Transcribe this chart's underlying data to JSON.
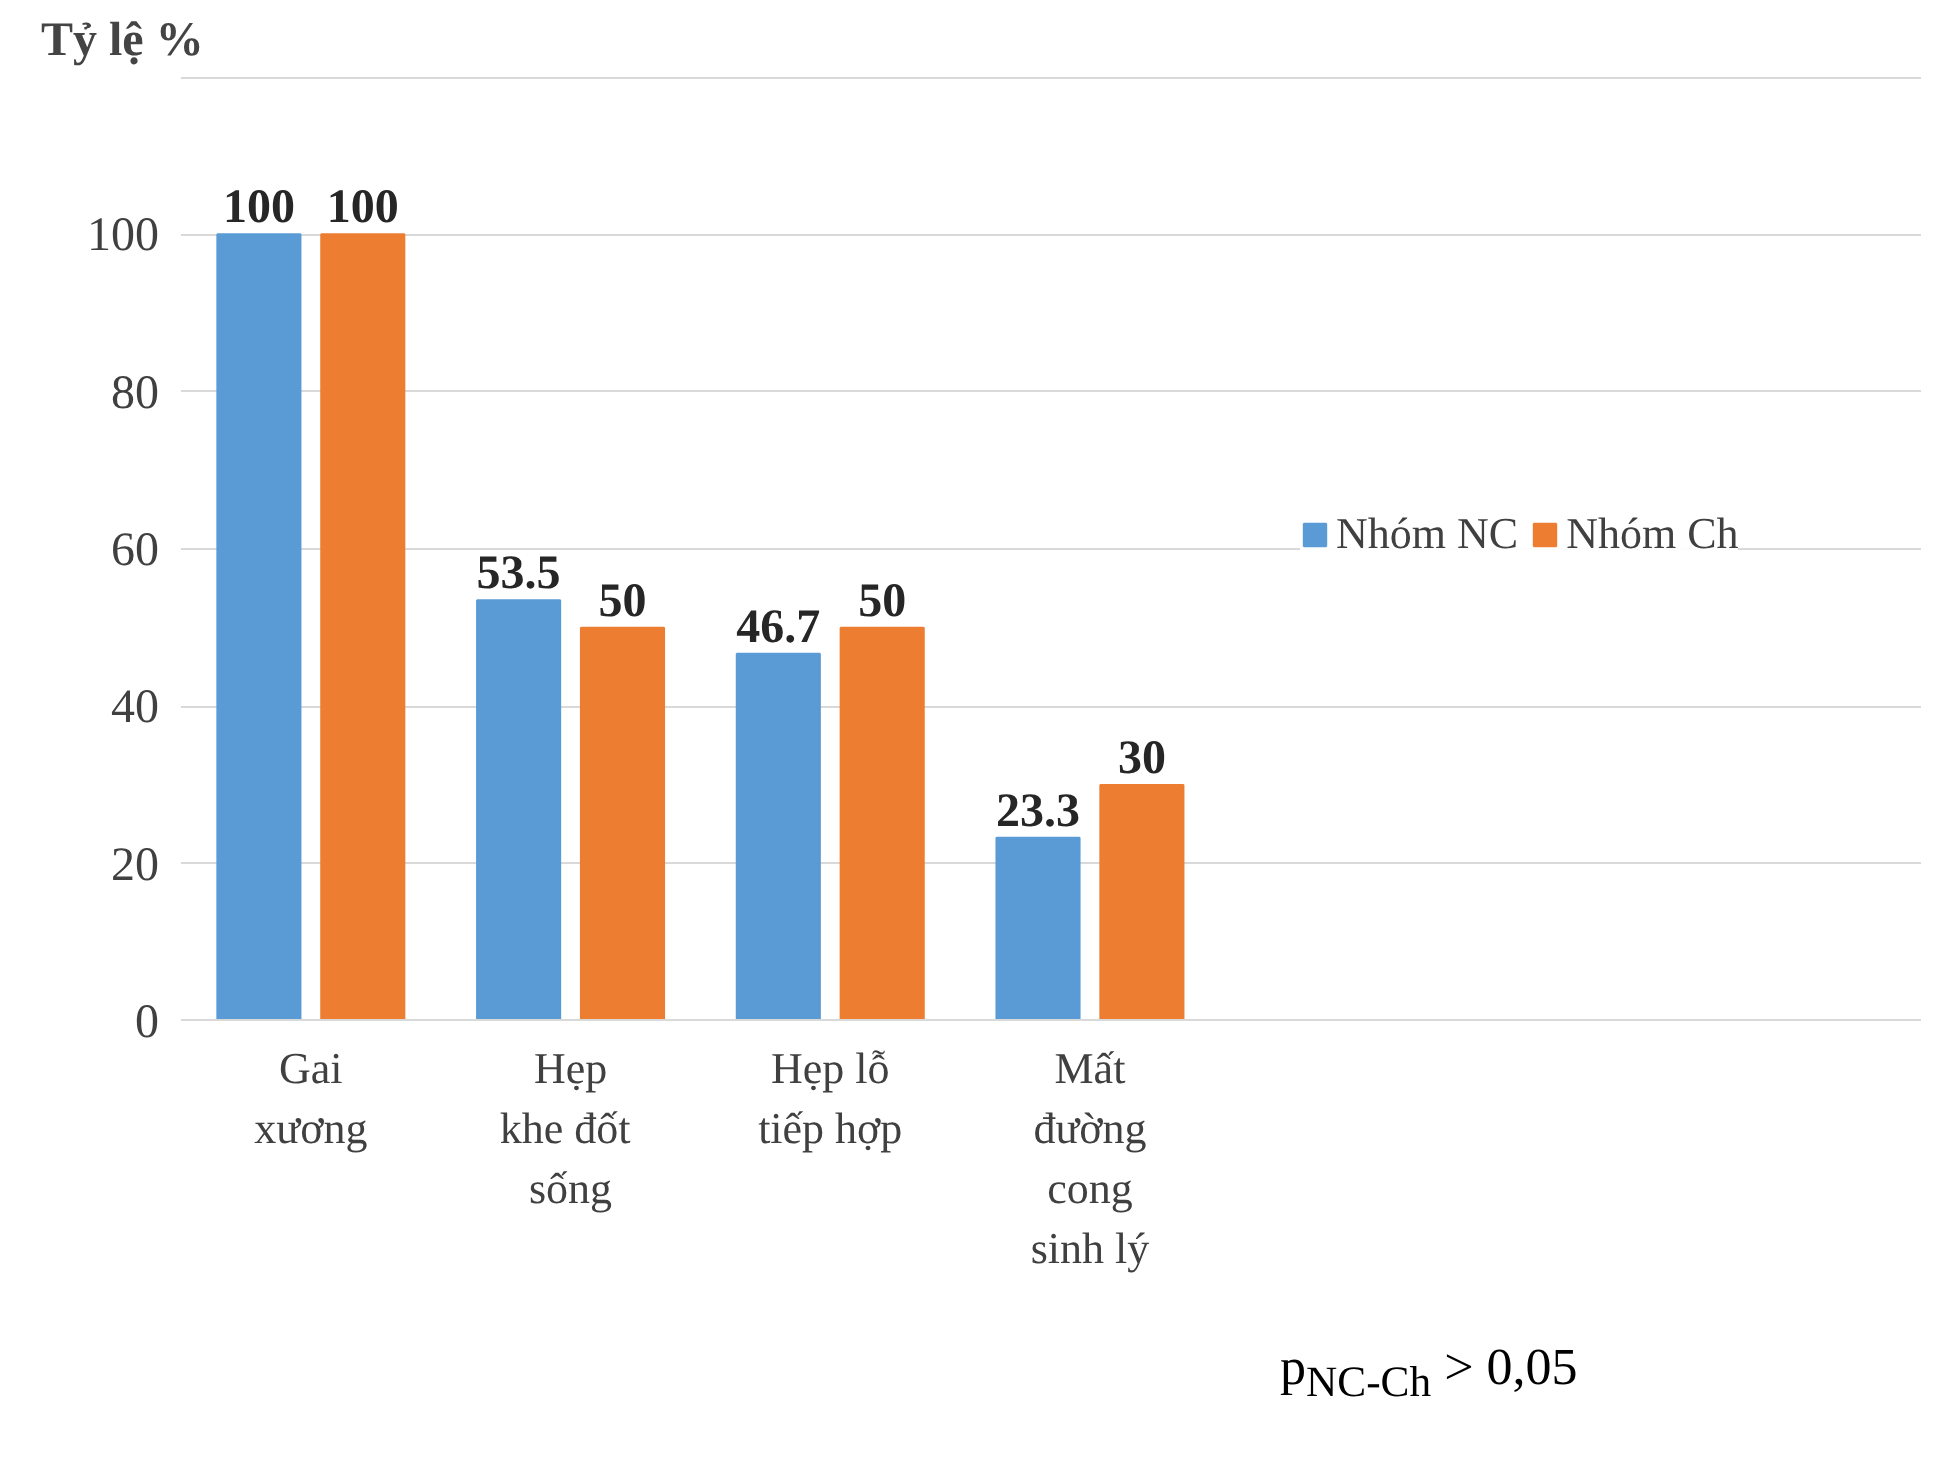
{
  "chart_data": {
    "type": "bar",
    "ylabel": "Tỷ lệ %",
    "categories": [
      "Gai\nxương",
      "Hẹp\nkhe  đốt\nsống",
      "Hẹp lỗ\ntiếp hợp",
      "Mất\nđường\ncong\nsinh lý"
    ],
    "series": [
      {
        "name": "Nhóm NC",
        "color": "#5b9bd5",
        "values": [
          100,
          53.5,
          46.7,
          23.3
        ]
      },
      {
        "name": "Nhóm Ch",
        "color": "#ed7d31",
        "values": [
          100,
          50,
          50,
          30
        ]
      }
    ],
    "ylim": [
      0,
      120
    ],
    "yticks": [
      0,
      20,
      40,
      60,
      80,
      100,
      {
        "value": 120,
        "label": null
      }
    ],
    "grid": "y",
    "legend": "right",
    "data_labels": true,
    "annotations": [
      "p$_{NC-Ch}$ > 0,05"
    ]
  }
}
